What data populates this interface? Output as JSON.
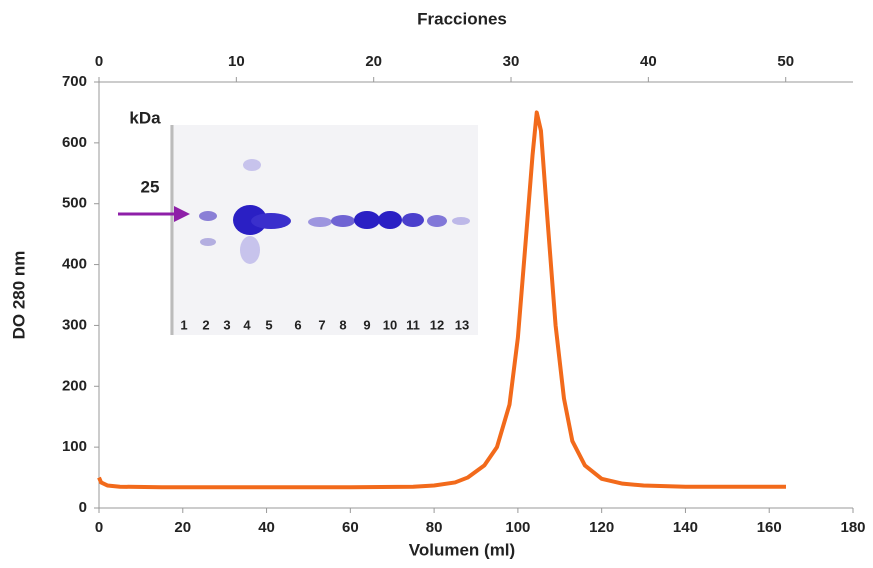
{
  "chart_data": {
    "type": "line",
    "top_axis_label": "Fracciones",
    "xlabel": "Volumen (ml)",
    "ylabel": "DO 280 nm",
    "x": [
      0,
      0.5,
      2,
      5,
      15,
      40,
      60,
      75,
      80,
      85,
      88,
      92,
      95,
      98,
      100,
      102,
      103.5,
      104.5,
      105.5,
      107,
      109,
      111,
      113,
      116,
      120,
      125,
      130,
      140,
      150,
      164
    ],
    "values": [
      50,
      42,
      37,
      35,
      34,
      34,
      34,
      35,
      37,
      42,
      50,
      70,
      100,
      170,
      280,
      450,
      580,
      650,
      620,
      480,
      300,
      180,
      110,
      70,
      48,
      40,
      37,
      35,
      35,
      35
    ],
    "color": "#f26a1b",
    "xlim": [
      0,
      180
    ],
    "xticks": [
      0,
      20,
      40,
      60,
      80,
      100,
      120,
      140,
      160,
      180
    ],
    "x2lim": [
      0,
      54.9
    ],
    "x2ticks": [
      0,
      10,
      20,
      30,
      40,
      50
    ],
    "ylim": [
      0,
      700
    ],
    "yticks": [
      0,
      100,
      200,
      300,
      400,
      500,
      600,
      700
    ],
    "inset": {
      "unit_label": "kDa",
      "marker": "25",
      "lanes": [
        "1",
        "2",
        "3",
        "4",
        "5",
        "6",
        "7",
        "8",
        "9",
        "10",
        "11",
        "12",
        "13"
      ]
    }
  }
}
